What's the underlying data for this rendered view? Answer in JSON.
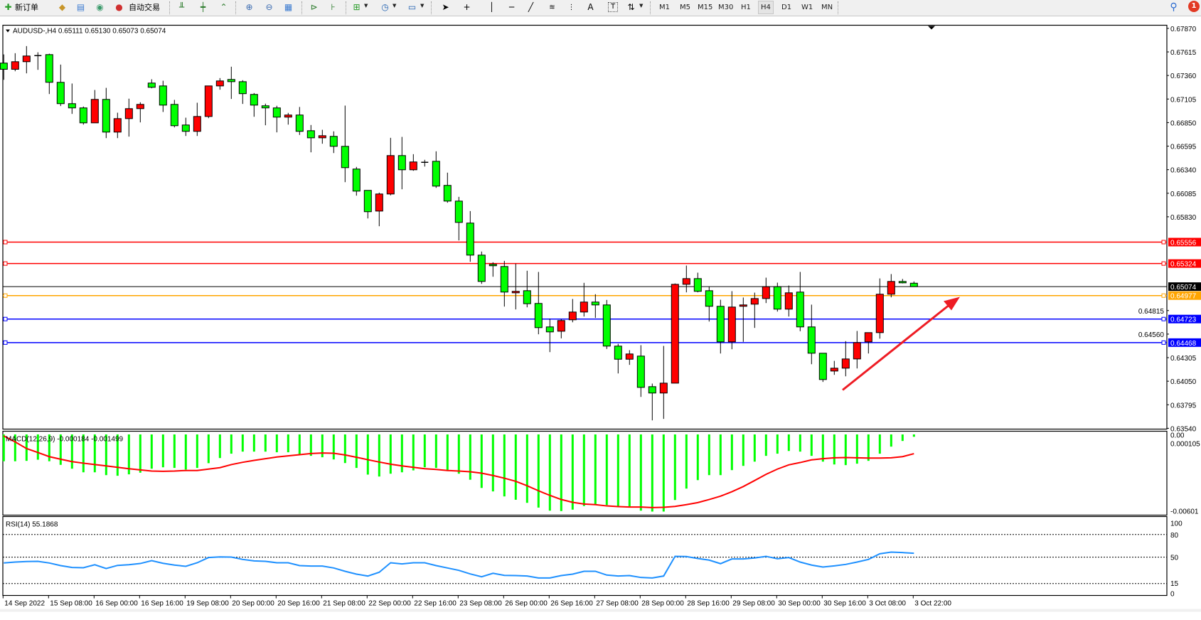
{
  "toolbar": {
    "new_order_label": "新订单",
    "auto_trading_label": "自动交易",
    "timeframes": [
      "M1",
      "M5",
      "M15",
      "M30",
      "H1",
      "H4",
      "D1",
      "W1",
      "MN"
    ],
    "active_timeframe": "H4",
    "notification_count": "1",
    "icons": [
      "new-order-icon",
      "gold-icon",
      "market-watch-icon",
      "signals-icon",
      "auto-trading-icon",
      "bar-chart-icon",
      "candlestick-icon",
      "line-chart-icon",
      "zoom-in-icon",
      "zoom-out-icon",
      "tile-windows-icon",
      "chart-shift-icon",
      "autoscroll-icon",
      "indicators-icon",
      "periods-icon",
      "templates-icon",
      "cursor-icon",
      "crosshair-icon",
      "vertical-line-icon",
      "horizontal-line-icon",
      "trendline-icon",
      "fibonacci-icon",
      "fibonacci-fan-icon",
      "text-icon",
      "text-label-icon",
      "arrows-icon",
      "search-icon",
      "notification-icon"
    ],
    "text_tool_label": "A",
    "label_tool_label": "T"
  },
  "chart": {
    "header": "AUDUSD-,H4  0.65111 0.65130 0.65073 0.65074",
    "colors": {
      "up": "#ff0000",
      "down": "#00ff00",
      "macd_hist": "#00ff00",
      "macd_signal": "#ff0000",
      "rsi": "#1e90ff",
      "current_price": "#000000"
    },
    "price_axis_labels": [
      "0.67870",
      "0.67615",
      "0.67360",
      "0.67105",
      "0.66850",
      "0.66595",
      "0.66340",
      "0.66085",
      "0.65830",
      "0.64815",
      "0.64560",
      "0.64305",
      "0.64050",
      "0.63795",
      "0.63540"
    ],
    "horizontal_lines": [
      {
        "price": "0.65556",
        "color": "#ff0000"
      },
      {
        "price": "0.65324",
        "color": "#ff0000"
      },
      {
        "price": "0.64977",
        "color": "#ffa500"
      },
      {
        "price": "0.64723",
        "color": "#0000ff"
      },
      {
        "price": "0.64468",
        "color": "#0000ff"
      }
    ],
    "current_price": "0.65074",
    "time_labels": [
      "14 Sep 2022",
      "15 Sep 08:00",
      "16 Sep 00:00",
      "16 Sep 16:00",
      "19 Sep 08:00",
      "20 Sep 00:00",
      "20 Sep 16:00",
      "21 Sep 08:00",
      "22 Sep 00:00",
      "22 Sep 16:00",
      "23 Sep 08:00",
      "26 Sep 00:00",
      "26 Sep 16:00",
      "27 Sep 08:00",
      "28 Sep 00:00",
      "28 Sep 16:00",
      "29 Sep 08:00",
      "30 Sep 00:00",
      "30 Sep 16:00",
      "3 Oct 08:00",
      "3 Oct 22:00"
    ],
    "annotation_arrow_color": "#ee1c24"
  },
  "macd": {
    "label": "MACD(12,26,9) -0.000184 -0.001499",
    "axis_labels": [
      "0.000105",
      "-0.00601"
    ],
    "axis_top_overlap": "0.00"
  },
  "rsi": {
    "label": "RSI(14) 55.1868",
    "levels": [
      "100",
      "80",
      "50",
      "15",
      "0"
    ]
  },
  "chart_data": {
    "type": "candlestick",
    "symbol": "AUDUSD-",
    "timeframe": "H4",
    "ylim": [
      0.6354,
      0.6787
    ],
    "ohlc": [
      [
        0.67494,
        0.67588,
        0.67313,
        0.67427
      ],
      [
        0.67427,
        0.67601,
        0.67406,
        0.67509
      ],
      [
        0.67509,
        0.67678,
        0.67383,
        0.67571
      ],
      [
        0.67575,
        0.67611,
        0.67421,
        0.67575
      ],
      [
        0.67586,
        0.67596,
        0.67159,
        0.67286
      ],
      [
        0.67286,
        0.67478,
        0.67029,
        0.67055
      ],
      [
        0.67055,
        0.67273,
        0.66944,
        0.67009
      ],
      [
        0.67009,
        0.67024,
        0.66828,
        0.66847
      ],
      [
        0.66847,
        0.67203,
        0.66847,
        0.67101
      ],
      [
        0.67101,
        0.67226,
        0.66682,
        0.66747
      ],
      [
        0.66747,
        0.66957,
        0.66682,
        0.66893
      ],
      [
        0.66893,
        0.67109,
        0.66698,
        0.67001
      ],
      [
        0.67001,
        0.6707,
        0.66852,
        0.67047
      ],
      [
        0.67278,
        0.67319,
        0.67221,
        0.67232
      ],
      [
        0.67247,
        0.67303,
        0.66965,
        0.67039
      ],
      [
        0.67047,
        0.67096,
        0.66798,
        0.66816
      ],
      [
        0.66824,
        0.66903,
        0.66705,
        0.66755
      ],
      [
        0.66755,
        0.67065,
        0.66705,
        0.66916
      ],
      [
        0.66916,
        0.67247,
        0.66898,
        0.67247
      ],
      [
        0.67247,
        0.67332,
        0.67206,
        0.67301
      ],
      [
        0.67317,
        0.67455,
        0.67106,
        0.67293
      ],
      [
        0.67293,
        0.67309,
        0.67052,
        0.67163
      ],
      [
        0.67155,
        0.6717,
        0.66913,
        0.67039
      ],
      [
        0.67032,
        0.67055,
        0.66821,
        0.67009
      ],
      [
        0.67009,
        0.67032,
        0.66744,
        0.66909
      ],
      [
        0.66909,
        0.66955,
        0.66828,
        0.66932
      ],
      [
        0.66932,
        0.67019,
        0.66716,
        0.66755
      ],
      [
        0.66762,
        0.66824,
        0.66528,
        0.66685
      ],
      [
        0.66685,
        0.66772,
        0.66621,
        0.66708
      ],
      [
        0.66701,
        0.66755,
        0.6652,
        0.66593
      ],
      [
        0.66593,
        0.67034,
        0.66205,
        0.66362
      ],
      [
        0.66347,
        0.6637,
        0.66059,
        0.66108
      ],
      [
        0.66116,
        0.66116,
        0.65812,
        0.65885
      ],
      [
        0.65892,
        0.66092,
        0.65728,
        0.66077
      ],
      [
        0.66077,
        0.66685,
        0.66062,
        0.66493
      ],
      [
        0.66493,
        0.66695,
        0.66128,
        0.66339
      ],
      [
        0.66339,
        0.66508,
        0.66328,
        0.66424
      ],
      [
        0.6642,
        0.66447,
        0.66374,
        0.6642
      ],
      [
        0.66431,
        0.66539,
        0.66143,
        0.66162
      ],
      [
        0.6617,
        0.66308,
        0.65982,
        0.66
      ],
      [
        0.66,
        0.66046,
        0.65574,
        0.65769
      ],
      [
        0.65762,
        0.65892,
        0.65343,
        0.65415
      ],
      [
        0.65415,
        0.65454,
        0.65104,
        0.6513
      ],
      [
        0.65315,
        0.65338,
        0.65181,
        0.653
      ],
      [
        0.65292,
        0.65353,
        0.64858,
        0.65015
      ],
      [
        0.65007,
        0.65323,
        0.64827,
        0.65023
      ],
      [
        0.6503,
        0.65246,
        0.6485,
        0.64889
      ],
      [
        0.64892,
        0.65233,
        0.64558,
        0.6463
      ],
      [
        0.64638,
        0.64727,
        0.64365,
        0.64584
      ],
      [
        0.64591,
        0.64722,
        0.64514,
        0.64707
      ],
      [
        0.64715,
        0.6494,
        0.64688,
        0.64799
      ],
      [
        0.64799,
        0.65115,
        0.6475,
        0.64907
      ],
      [
        0.64907,
        0.64992,
        0.64735,
        0.64876
      ],
      [
        0.64876,
        0.6493,
        0.64399,
        0.6443
      ],
      [
        0.6443,
        0.64455,
        0.64134,
        0.64288
      ],
      [
        0.64288,
        0.64386,
        0.64227,
        0.64345
      ],
      [
        0.64322,
        0.6444,
        0.6388,
        0.63983
      ],
      [
        0.63991,
        0.64024,
        0.63626,
        0.63922
      ],
      [
        0.63922,
        0.64432,
        0.63642,
        0.64029
      ],
      [
        0.64029,
        0.65109,
        0.64029,
        0.65099
      ],
      [
        0.65099,
        0.65302,
        0.65012,
        0.65161
      ],
      [
        0.65161,
        0.65225,
        0.65012,
        0.65023
      ],
      [
        0.6503,
        0.65073,
        0.64696,
        0.64861
      ],
      [
        0.64861,
        0.64932,
        0.6435,
        0.64476
      ],
      [
        0.64476,
        0.65025,
        0.64396,
        0.64853
      ],
      [
        0.64861,
        0.64956,
        0.64476,
        0.64876
      ],
      [
        0.64884,
        0.65009,
        0.64627,
        0.64945
      ],
      [
        0.64945,
        0.65171,
        0.64896,
        0.65073
      ],
      [
        0.65073,
        0.65117,
        0.64804,
        0.6483
      ],
      [
        0.6483,
        0.65086,
        0.6475,
        0.65007
      ],
      [
        0.65015,
        0.65233,
        0.64591,
        0.64638
      ],
      [
        0.64638,
        0.64879,
        0.64234,
        0.64353
      ],
      [
        0.64353,
        0.64353,
        0.64042,
        0.64068
      ],
      [
        0.6416,
        0.6427,
        0.64119,
        0.64191
      ],
      [
        0.64191,
        0.64484,
        0.64103,
        0.64291
      ],
      [
        0.64291,
        0.64594,
        0.64188,
        0.64468
      ],
      [
        0.64476,
        0.64576,
        0.6435,
        0.64576
      ],
      [
        0.64576,
        0.65163,
        0.64511,
        0.64992
      ],
      [
        0.64992,
        0.6521,
        0.64958,
        0.6513
      ],
      [
        0.6513,
        0.65157,
        0.65109,
        0.65115
      ],
      [
        0.65111,
        0.6513,
        0.65073,
        0.65074
      ]
    ],
    "macd_ylim": [
      -0.00601,
      0.000105
    ],
    "macd_histogram": [
      -0.00209,
      -0.00209,
      -0.00206,
      -0.00197,
      -0.00209,
      -0.00237,
      -0.00267,
      -0.00295,
      -0.00295,
      -0.00317,
      -0.00322,
      -0.00311,
      -0.00298,
      -0.00267,
      -0.00256,
      -0.00261,
      -0.00274,
      -0.00261,
      -0.00224,
      -0.00184,
      -0.0015,
      -0.00134,
      -0.00134,
      -0.00134,
      -0.00139,
      -0.00139,
      -0.00156,
      -0.00167,
      -0.00178,
      -0.00195,
      -0.00223,
      -0.00261,
      -0.00313,
      -0.00328,
      -0.00306,
      -0.00295,
      -0.0028,
      -0.00256,
      -0.00261,
      -0.00284,
      -0.00306,
      -0.00353,
      -0.00417,
      -0.00444,
      -0.00483,
      -0.00509,
      -0.00533,
      -0.0057,
      -0.00594,
      -0.00597,
      -0.00586,
      -0.00558,
      -0.00544,
      -0.0055,
      -0.00561,
      -0.00561,
      -0.00594,
      -0.00601,
      -0.00601,
      -0.00511,
      -0.00422,
      -0.00356,
      -0.00317,
      -0.00317,
      -0.00278,
      -0.00245,
      -0.00212,
      -0.00167,
      -0.0015,
      -0.00129,
      -0.00134,
      -0.00167,
      -0.00212,
      -0.00234,
      -0.00239,
      -0.00228,
      -0.00206,
      -0.0015,
      -0.00095,
      -0.00051,
      -0.000184
    ],
    "macd_signal": [
      -0.00012,
      -0.00058,
      -0.0011,
      -0.00141,
      -0.00173,
      -0.00193,
      -0.00212,
      -0.00224,
      -0.00235,
      -0.00245,
      -0.00256,
      -0.00267,
      -0.00276,
      -0.00285,
      -0.00287,
      -0.00285,
      -0.00281,
      -0.00281,
      -0.0027,
      -0.00259,
      -0.00235,
      -0.00217,
      -0.00202,
      -0.00189,
      -0.00176,
      -0.00167,
      -0.00158,
      -0.00149,
      -0.00145,
      -0.00147,
      -0.0016,
      -0.00178,
      -0.00197,
      -0.00215,
      -0.00232,
      -0.00245,
      -0.00256,
      -0.00267,
      -0.00273,
      -0.00281,
      -0.00285,
      -0.00291,
      -0.00302,
      -0.0032,
      -0.00341,
      -0.00365,
      -0.004,
      -0.00439,
      -0.00475,
      -0.00507,
      -0.00529,
      -0.00542,
      -0.00547,
      -0.00557,
      -0.00562,
      -0.00566,
      -0.00566,
      -0.0057,
      -0.00568,
      -0.00561,
      -0.00547,
      -0.00531,
      -0.00507,
      -0.00481,
      -0.00446,
      -0.00406,
      -0.00359,
      -0.00311,
      -0.0027,
      -0.00237,
      -0.00219,
      -0.00198,
      -0.00189,
      -0.00182,
      -0.0018,
      -0.00182,
      -0.00184,
      -0.00184,
      -0.00182,
      -0.00173,
      -0.001499
    ],
    "rsi_ylim": [
      0,
      100
    ],
    "rsi": [
      42.3,
      43.5,
      44.2,
      44.5,
      42.3,
      38.8,
      36.3,
      36.0,
      40.0,
      35.0,
      39.1,
      40.0,
      41.6,
      45.4,
      41.9,
      39.5,
      37.9,
      42.6,
      49.5,
      50.4,
      50.1,
      47.0,
      45.1,
      44.5,
      42.6,
      42.6,
      38.8,
      38.2,
      38.2,
      35.7,
      31.3,
      27.5,
      25.0,
      30.0,
      42.6,
      41.0,
      42.6,
      42.6,
      38.8,
      35.7,
      32.5,
      27.8,
      24.0,
      28.7,
      25.9,
      25.6,
      25.0,
      22.5,
      22.5,
      25.6,
      27.5,
      31.3,
      31.3,
      26.3,
      25.0,
      25.6,
      23.1,
      22.5,
      25.0,
      51.1,
      50.8,
      48.2,
      46.1,
      41.4,
      47.6,
      47.6,
      48.9,
      51.1,
      47.9,
      49.5,
      43.5,
      39.5,
      36.9,
      38.5,
      40.4,
      43.5,
      47.0,
      54.5,
      56.7,
      56.1,
      55.19
    ],
    "rsi_levels": [
      80,
      50,
      15
    ]
  }
}
